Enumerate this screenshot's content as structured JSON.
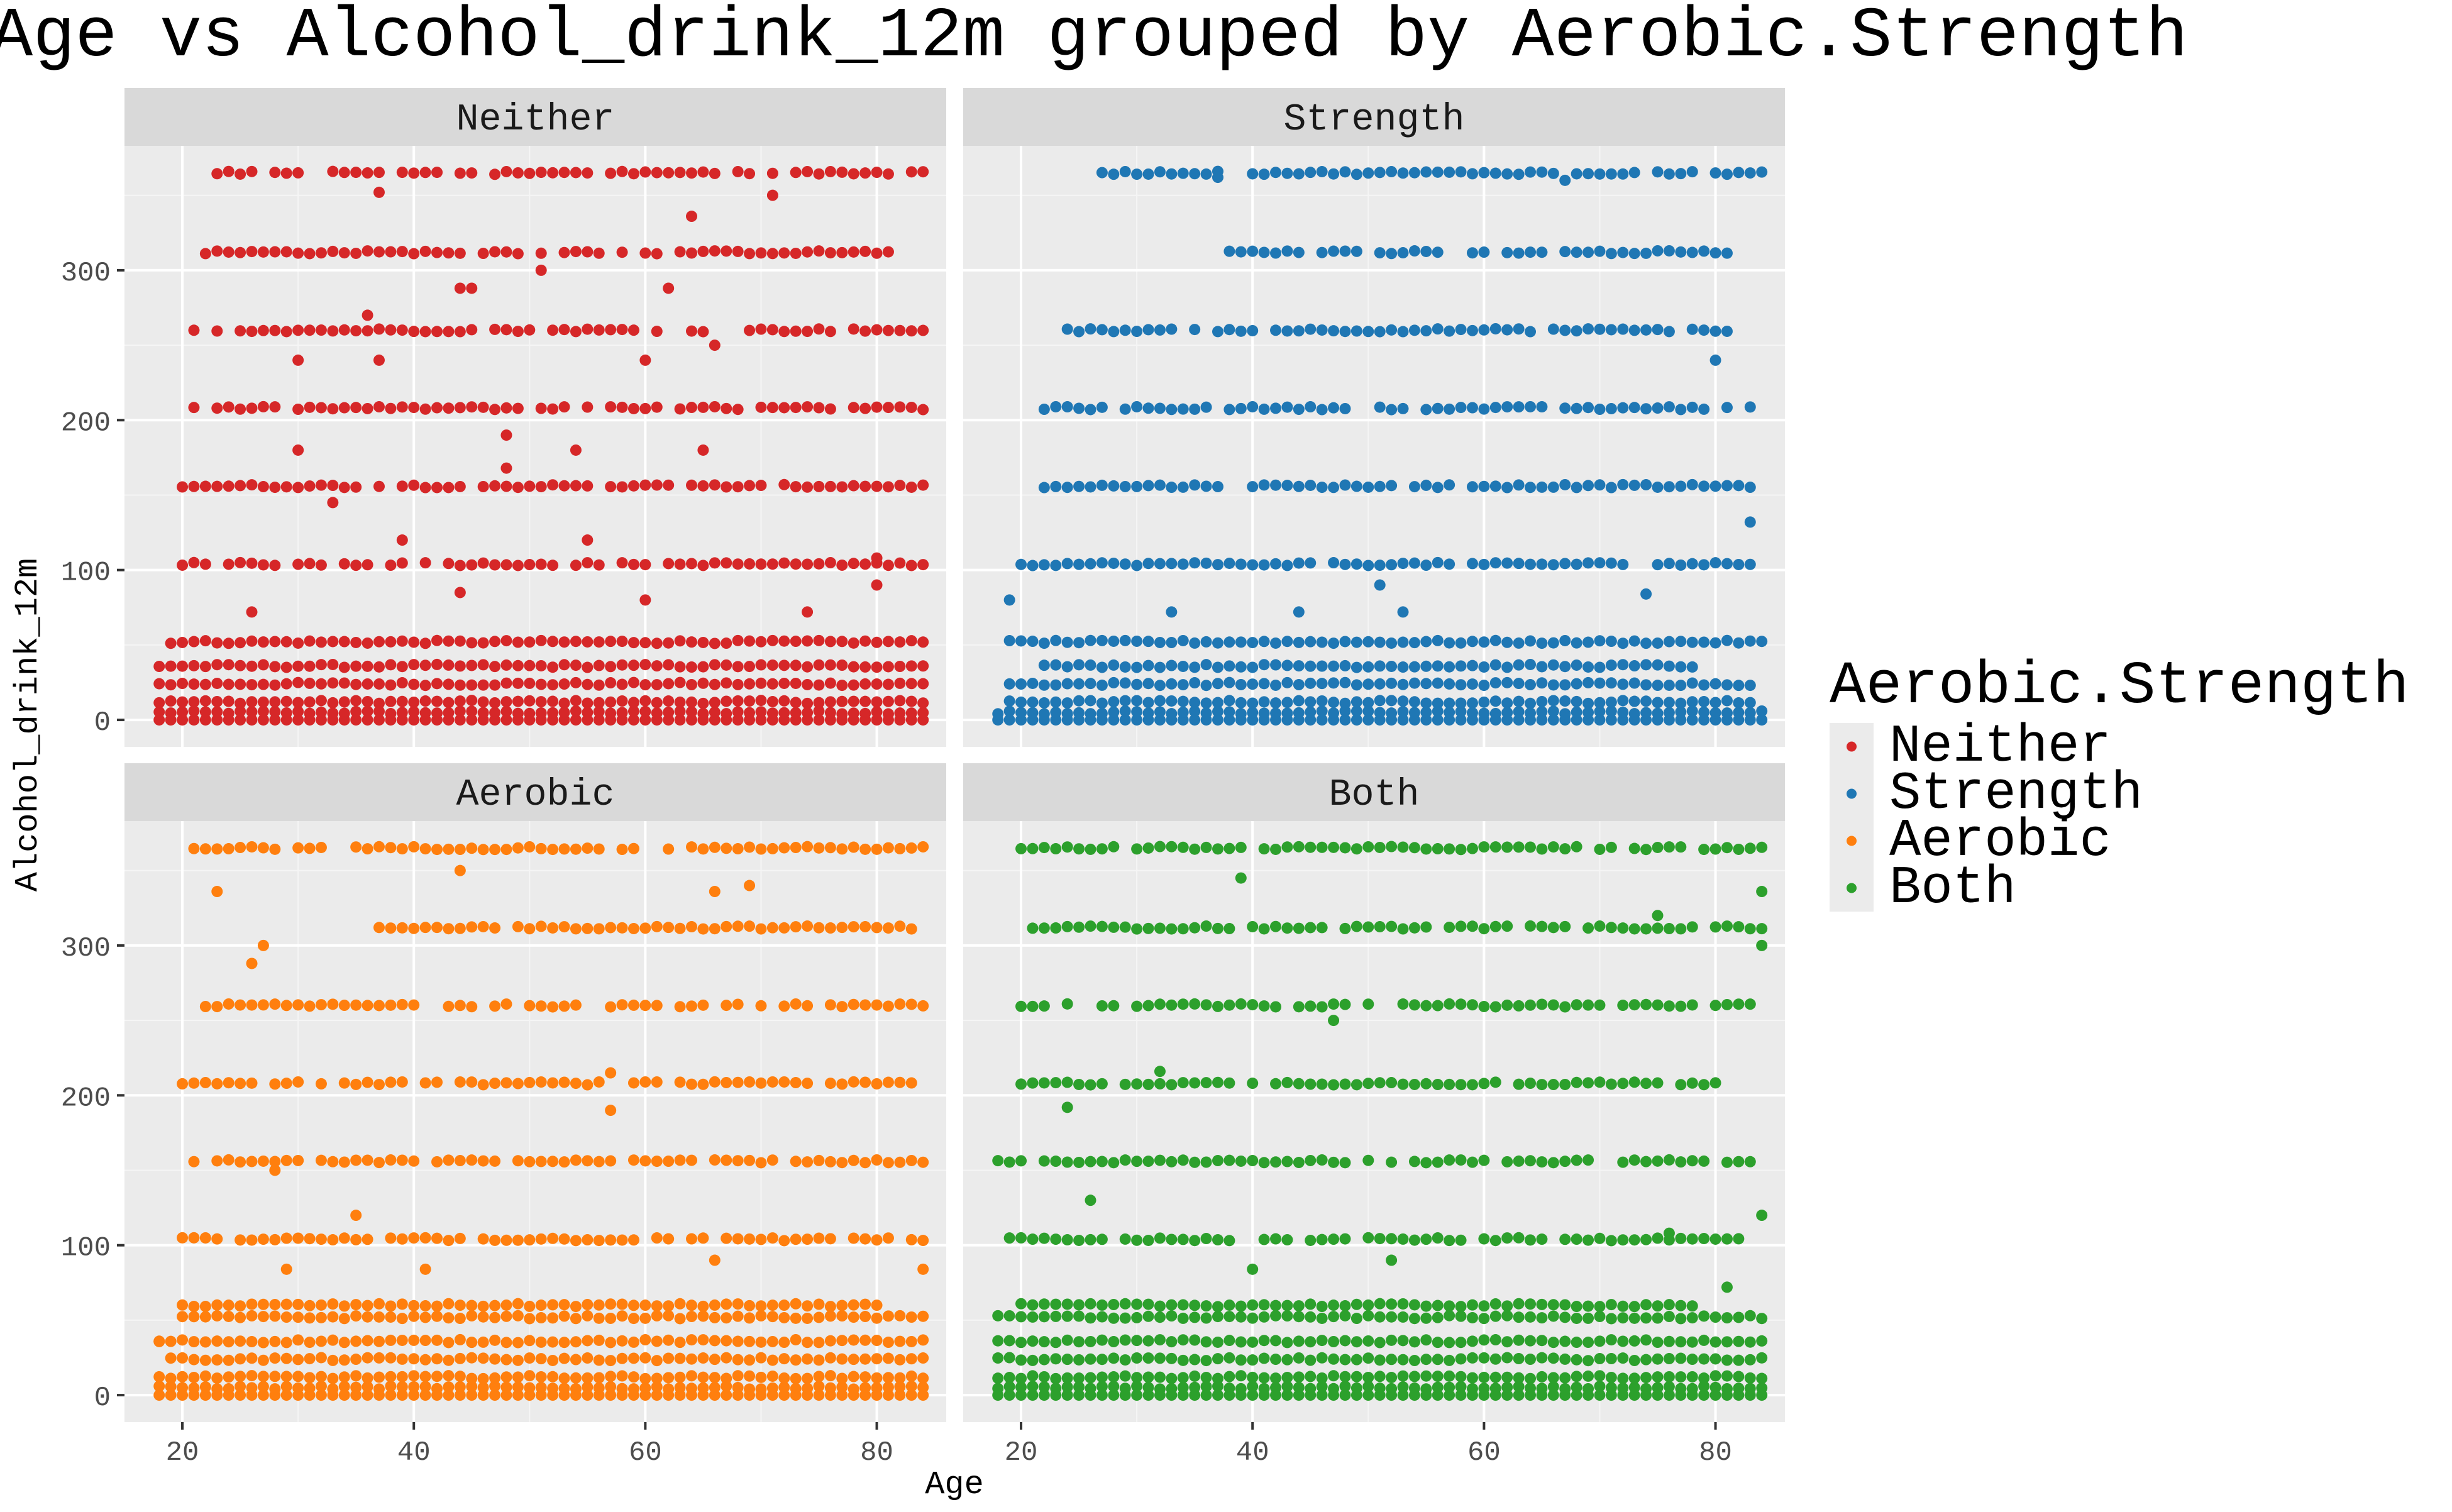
{
  "title": "Age vs Alcohol_drink_12m grouped by Aerobic.Strength",
  "legend": {
    "title": "Aerobic.Strength",
    "items": [
      {
        "label": "Neither",
        "color": "#d62728"
      },
      {
        "label": "Strength",
        "color": "#1f77b4"
      },
      {
        "label": "Aerobic",
        "color": "#ff7f0e"
      },
      {
        "label": "Both",
        "color": "#2ca02c"
      }
    ]
  },
  "chart_data": {
    "type": "scatter",
    "title": "Age vs Alcohol_drink_12m grouped by Aerobic.Strength",
    "xlabel": "Age",
    "ylabel": "Alcohol_drink_12m",
    "facet_by": "Aerobic.Strength",
    "xlim": [
      15,
      86
    ],
    "ylim": [
      -18,
      383
    ],
    "x_ticks": [
      20,
      40,
      60,
      80
    ],
    "y_ticks": [
      0,
      100,
      200,
      300
    ],
    "x_tick_labels": [
      "20",
      "40",
      "60",
      "80"
    ],
    "y_tick_labels": [
      "0",
      "100",
      "200",
      "300"
    ],
    "grid": true,
    "legend_position": "right",
    "age_range": [
      18,
      84
    ],
    "points_are_approximate": true,
    "series": [
      {
        "name": "Neither",
        "color": "#d62728",
        "levels": [
          {
            "y": 0,
            "x_ranges": [
              [
                18,
                84
              ]
            ]
          },
          {
            "y": 5,
            "x_ranges": [
              [
                18,
                84
              ]
            ]
          },
          {
            "y": 12,
            "x_ranges": [
              [
                18,
                84
              ]
            ]
          },
          {
            "y": 24,
            "x_ranges": [
              [
                18,
                84
              ]
            ]
          },
          {
            "y": 36,
            "x_ranges": [
              [
                18,
                84
              ]
            ]
          },
          {
            "y": 52,
            "x_ranges": [
              [
                19,
                84
              ]
            ]
          },
          {
            "y": 104,
            "x_ranges": [
              [
                19,
                84
              ]
            ]
          },
          {
            "y": 156,
            "x_ranges": [
              [
                20,
                84
              ]
            ]
          },
          {
            "y": 208,
            "x_ranges": [
              [
                21,
                84
              ]
            ]
          },
          {
            "y": 260,
            "x_ranges": [
              [
                20,
                84
              ]
            ]
          },
          {
            "y": 312,
            "x_ranges": [
              [
                22,
                82
              ]
            ]
          },
          {
            "y": 365,
            "x_ranges": [
              [
                23,
                84
              ]
            ]
          }
        ],
        "extra": [
          {
            "x": 37,
            "y": 352
          },
          {
            "x": 64,
            "y": 336
          },
          {
            "x": 71,
            "y": 350
          },
          {
            "x": 44,
            "y": 288
          },
          {
            "x": 45,
            "y": 288
          },
          {
            "x": 62,
            "y": 288
          },
          {
            "x": 36,
            "y": 270
          },
          {
            "x": 66,
            "y": 250
          },
          {
            "x": 51,
            "y": 300
          },
          {
            "x": 30,
            "y": 240
          },
          {
            "x": 37,
            "y": 240
          },
          {
            "x": 60,
            "y": 240
          },
          {
            "x": 48,
            "y": 190
          },
          {
            "x": 48,
            "y": 168
          },
          {
            "x": 30,
            "y": 180
          },
          {
            "x": 54,
            "y": 180
          },
          {
            "x": 65,
            "y": 180
          },
          {
            "x": 33,
            "y": 145
          },
          {
            "x": 55,
            "y": 120
          },
          {
            "x": 39,
            "y": 120
          },
          {
            "x": 80,
            "y": 108
          },
          {
            "x": 26,
            "y": 72
          },
          {
            "x": 44,
            "y": 85
          },
          {
            "x": 60,
            "y": 80
          },
          {
            "x": 74,
            "y": 72
          },
          {
            "x": 80,
            "y": 90
          }
        ]
      },
      {
        "name": "Strength",
        "color": "#1f77b4",
        "levels": [
          {
            "y": 0,
            "x_ranges": [
              [
                18,
                84
              ]
            ]
          },
          {
            "y": 5,
            "x_ranges": [
              [
                18,
                84
              ]
            ]
          },
          {
            "y": 12,
            "x_ranges": [
              [
                19,
                83
              ]
            ]
          },
          {
            "y": 24,
            "x_ranges": [
              [
                19,
                83
              ]
            ]
          },
          {
            "y": 36,
            "x_ranges": [
              [
                22,
                78
              ]
            ]
          },
          {
            "y": 52,
            "x_ranges": [
              [
                19,
                84
              ]
            ]
          },
          {
            "y": 104,
            "x_ranges": [
              [
                20,
                83
              ]
            ]
          },
          {
            "y": 156,
            "x_ranges": [
              [
                22,
                83
              ]
            ]
          },
          {
            "y": 208,
            "x_ranges": [
              [
                22,
                83
              ]
            ]
          },
          {
            "y": 260,
            "x_ranges": [
              [
                24,
                81
              ]
            ]
          },
          {
            "y": 312,
            "x_ranges": [
              [
                38,
                81
              ]
            ]
          },
          {
            "y": 365,
            "x_ranges": [
              [
                27,
                84
              ]
            ]
          }
        ],
        "extra": [
          {
            "x": 37,
            "y": 362
          },
          {
            "x": 67,
            "y": 360
          },
          {
            "x": 80,
            "y": 240
          },
          {
            "x": 83,
            "y": 132
          },
          {
            "x": 51,
            "y": 90
          },
          {
            "x": 74,
            "y": 84
          },
          {
            "x": 19,
            "y": 80
          },
          {
            "x": 33,
            "y": 72
          },
          {
            "x": 44,
            "y": 72
          },
          {
            "x": 53,
            "y": 72
          }
        ]
      },
      {
        "name": "Aerobic",
        "color": "#ff7f0e",
        "levels": [
          {
            "y": 0,
            "x_ranges": [
              [
                18,
                84
              ]
            ]
          },
          {
            "y": 5,
            "x_ranges": [
              [
                18,
                84
              ]
            ]
          },
          {
            "y": 12,
            "x_ranges": [
              [
                18,
                84
              ]
            ]
          },
          {
            "y": 24,
            "x_ranges": [
              [
                19,
                84
              ]
            ]
          },
          {
            "y": 36,
            "x_ranges": [
              [
                18,
                84
              ]
            ]
          },
          {
            "y": 52,
            "x_ranges": [
              [
                20,
                84
              ]
            ]
          },
          {
            "y": 60,
            "x_ranges": [
              [
                20,
                80
              ]
            ]
          },
          {
            "y": 104,
            "x_ranges": [
              [
                20,
                84
              ]
            ]
          },
          {
            "y": 156,
            "x_ranges": [
              [
                21,
                84
              ]
            ]
          },
          {
            "y": 208,
            "x_ranges": [
              [
                20,
                84
              ]
            ]
          },
          {
            "y": 260,
            "x_ranges": [
              [
                22,
                84
              ]
            ]
          },
          {
            "y": 312,
            "x_ranges": [
              [
                37,
                83
              ]
            ]
          },
          {
            "y": 365,
            "x_ranges": [
              [
                21,
                84
              ]
            ]
          }
        ],
        "extra": [
          {
            "x": 23,
            "y": 336
          },
          {
            "x": 44,
            "y": 350
          },
          {
            "x": 27,
            "y": 300
          },
          {
            "x": 26,
            "y": 288
          },
          {
            "x": 66,
            "y": 336
          },
          {
            "x": 69,
            "y": 340
          },
          {
            "x": 57,
            "y": 215
          },
          {
            "x": 57,
            "y": 190
          },
          {
            "x": 28,
            "y": 150
          },
          {
            "x": 35,
            "y": 120
          },
          {
            "x": 66,
            "y": 90
          },
          {
            "x": 84,
            "y": 84
          },
          {
            "x": 41,
            "y": 84
          },
          {
            "x": 29,
            "y": 84
          },
          {
            "x": 18,
            "y": 36
          }
        ]
      },
      {
        "name": "Both",
        "color": "#2ca02c",
        "levels": [
          {
            "y": 0,
            "x_ranges": [
              [
                18,
                84
              ]
            ]
          },
          {
            "y": 5,
            "x_ranges": [
              [
                18,
                84
              ]
            ]
          },
          {
            "y": 12,
            "x_ranges": [
              [
                18,
                84
              ]
            ]
          },
          {
            "y": 24,
            "x_ranges": [
              [
                18,
                84
              ]
            ]
          },
          {
            "y": 36,
            "x_ranges": [
              [
                18,
                84
              ]
            ]
          },
          {
            "y": 52,
            "x_ranges": [
              [
                18,
                84
              ]
            ]
          },
          {
            "y": 60,
            "x_ranges": [
              [
                20,
                78
              ]
            ]
          },
          {
            "y": 104,
            "x_ranges": [
              [
                19,
                82
              ]
            ]
          },
          {
            "y": 156,
            "x_ranges": [
              [
                18,
                83
              ]
            ]
          },
          {
            "y": 208,
            "x_ranges": [
              [
                20,
                80
              ]
            ]
          },
          {
            "y": 260,
            "x_ranges": [
              [
                20,
                84
              ]
            ]
          },
          {
            "y": 312,
            "x_ranges": [
              [
                20,
                84
              ]
            ]
          },
          {
            "y": 365,
            "x_ranges": [
              [
                20,
                84
              ]
            ]
          }
        ],
        "extra": [
          {
            "x": 39,
            "y": 345
          },
          {
            "x": 84,
            "y": 336
          },
          {
            "x": 84,
            "y": 300
          },
          {
            "x": 75,
            "y": 320
          },
          {
            "x": 47,
            "y": 250
          },
          {
            "x": 32,
            "y": 216
          },
          {
            "x": 24,
            "y": 192
          },
          {
            "x": 84,
            "y": 120
          },
          {
            "x": 26,
            "y": 130
          },
          {
            "x": 76,
            "y": 108
          },
          {
            "x": 81,
            "y": 72
          },
          {
            "x": 52,
            "y": 90
          },
          {
            "x": 40,
            "y": 84
          }
        ]
      }
    ]
  }
}
